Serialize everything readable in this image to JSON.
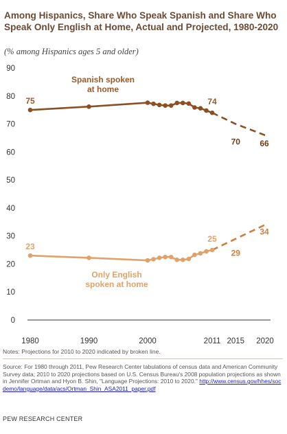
{
  "title": "Among Hispanics, Share Who Speak Spanish and Share Who Speak Only English at Home, Actual and Projected, 1980-2020",
  "subtitle": "(% among Hispanics ages 5 and older)",
  "notes": "Notes: Projections for 2010 to 2020 indicated by broken line.",
  "source_text": "Source: For 1980 through 2011, Pew Research Center tabulations of census data and American Community Survey data; 2010 to 2020 projections based on U.S. Census Bureau's 2008 population projections as shown in Jennifer Ortman and Hyon B. Shin, \"Language Projections: 2010 to 2020.\"",
  "source_url": "http://www.census.gov/hhes/socdemo/language/data/acs/Ortman_Shin_ASA2011_paper.pdf",
  "org": "PEW RESEARCH CENTER",
  "chart_data": {
    "type": "line",
    "title": "",
    "xlabel": "",
    "ylabel": "",
    "xlim": [
      1980,
      2020
    ],
    "ylim": [
      0,
      90
    ],
    "grid": false,
    "x_ticks": [
      "1980",
      "1990",
      "2000",
      "2011",
      "2015",
      "2020"
    ],
    "x_tick_values": [
      1980,
      1990,
      2000,
      2011,
      2015,
      2020
    ],
    "y_ticks": [
      "0",
      "10",
      "20",
      "30",
      "40",
      "50",
      "60",
      "70",
      "80",
      "90"
    ],
    "y_tick_values": [
      0,
      10,
      20,
      30,
      40,
      50,
      60,
      70,
      80,
      90
    ],
    "series": [
      {
        "name": "Spanish spoken at home",
        "label_lines": [
          "Spanish spoken",
          "at home"
        ],
        "color": "#8b4f23",
        "actual": [
          {
            "x": 1980,
            "y": 75
          },
          {
            "x": 1990,
            "y": 76.2
          },
          {
            "x": 2000,
            "y": 77.6
          },
          {
            "x": 2001,
            "y": 77.2
          },
          {
            "x": 2002,
            "y": 76.8
          },
          {
            "x": 2003,
            "y": 76.6
          },
          {
            "x": 2004,
            "y": 76.6
          },
          {
            "x": 2005,
            "y": 77.5
          },
          {
            "x": 2006,
            "y": 77.5
          },
          {
            "x": 2007,
            "y": 77.3
          },
          {
            "x": 2008,
            "y": 75.9
          },
          {
            "x": 2009,
            "y": 75.6
          },
          {
            "x": 2010,
            "y": 74.8
          },
          {
            "x": 2011,
            "y": 74
          }
        ],
        "projected": [
          {
            "x": 2011,
            "y": 74
          },
          {
            "x": 2015,
            "y": 70
          },
          {
            "x": 2020,
            "y": 66
          }
        ],
        "data_labels": [
          {
            "x": 1980,
            "y": 75,
            "text": "75"
          },
          {
            "x": 2011,
            "y": 74,
            "text": "74"
          },
          {
            "x": 2015,
            "y": 70,
            "text": "70"
          },
          {
            "x": 2020,
            "y": 66,
            "text": "66"
          }
        ]
      },
      {
        "name": "Only English spoken at home",
        "label_lines": [
          "Only English",
          "spoken at home"
        ],
        "color": "#e0a26a",
        "projected_color": "#cf7e3c",
        "actual": [
          {
            "x": 1980,
            "y": 23
          },
          {
            "x": 1990,
            "y": 22.2
          },
          {
            "x": 2000,
            "y": 21.3
          },
          {
            "x": 2001,
            "y": 21.7
          },
          {
            "x": 2002,
            "y": 22.2
          },
          {
            "x": 2003,
            "y": 22.5
          },
          {
            "x": 2004,
            "y": 22.5
          },
          {
            "x": 2005,
            "y": 21.5
          },
          {
            "x": 2006,
            "y": 21.5
          },
          {
            "x": 2007,
            "y": 21.8
          },
          {
            "x": 2008,
            "y": 23.3
          },
          {
            "x": 2009,
            "y": 23.8
          },
          {
            "x": 2010,
            "y": 24.5
          },
          {
            "x": 2011,
            "y": 25
          }
        ],
        "projected": [
          {
            "x": 2011,
            "y": 25
          },
          {
            "x": 2015,
            "y": 29
          },
          {
            "x": 2020,
            "y": 34
          }
        ],
        "data_labels": [
          {
            "x": 1980,
            "y": 23,
            "text": "23"
          },
          {
            "x": 2011,
            "y": 25,
            "text": "25"
          },
          {
            "x": 2015,
            "y": 29,
            "text": "29"
          },
          {
            "x": 2020,
            "y": 34,
            "text": "34"
          }
        ]
      }
    ]
  }
}
